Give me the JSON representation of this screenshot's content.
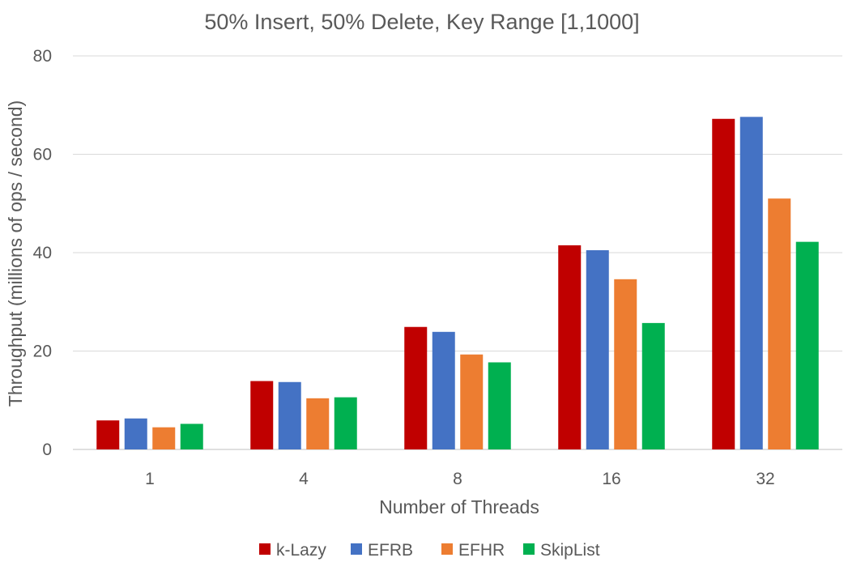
{
  "chart_data": {
    "type": "bar",
    "title": "50% Insert, 50% Delete, Key Range [1,1000]",
    "xlabel": "Number of Threads",
    "ylabel": "Throughput (millions of ops / second)",
    "categories": [
      "1",
      "4",
      "8",
      "16",
      "32"
    ],
    "ylim": [
      0,
      80
    ],
    "yticks": [
      0,
      20,
      40,
      60,
      80
    ],
    "grid": true,
    "legend_position": "bottom",
    "series": [
      {
        "name": "k-Lazy",
        "color": "#c00000",
        "values": [
          5.9,
          13.9,
          24.9,
          41.5,
          67.2
        ]
      },
      {
        "name": "EFRB",
        "color": "#4472c4",
        "values": [
          6.3,
          13.7,
          23.9,
          40.5,
          67.6
        ]
      },
      {
        "name": "EFHR",
        "color": "#ed7d31",
        "values": [
          4.5,
          10.4,
          19.3,
          34.6,
          51.0
        ]
      },
      {
        "name": "SkipList",
        "color": "#00b050",
        "values": [
          5.2,
          10.6,
          17.7,
          25.7,
          42.2
        ]
      }
    ]
  }
}
